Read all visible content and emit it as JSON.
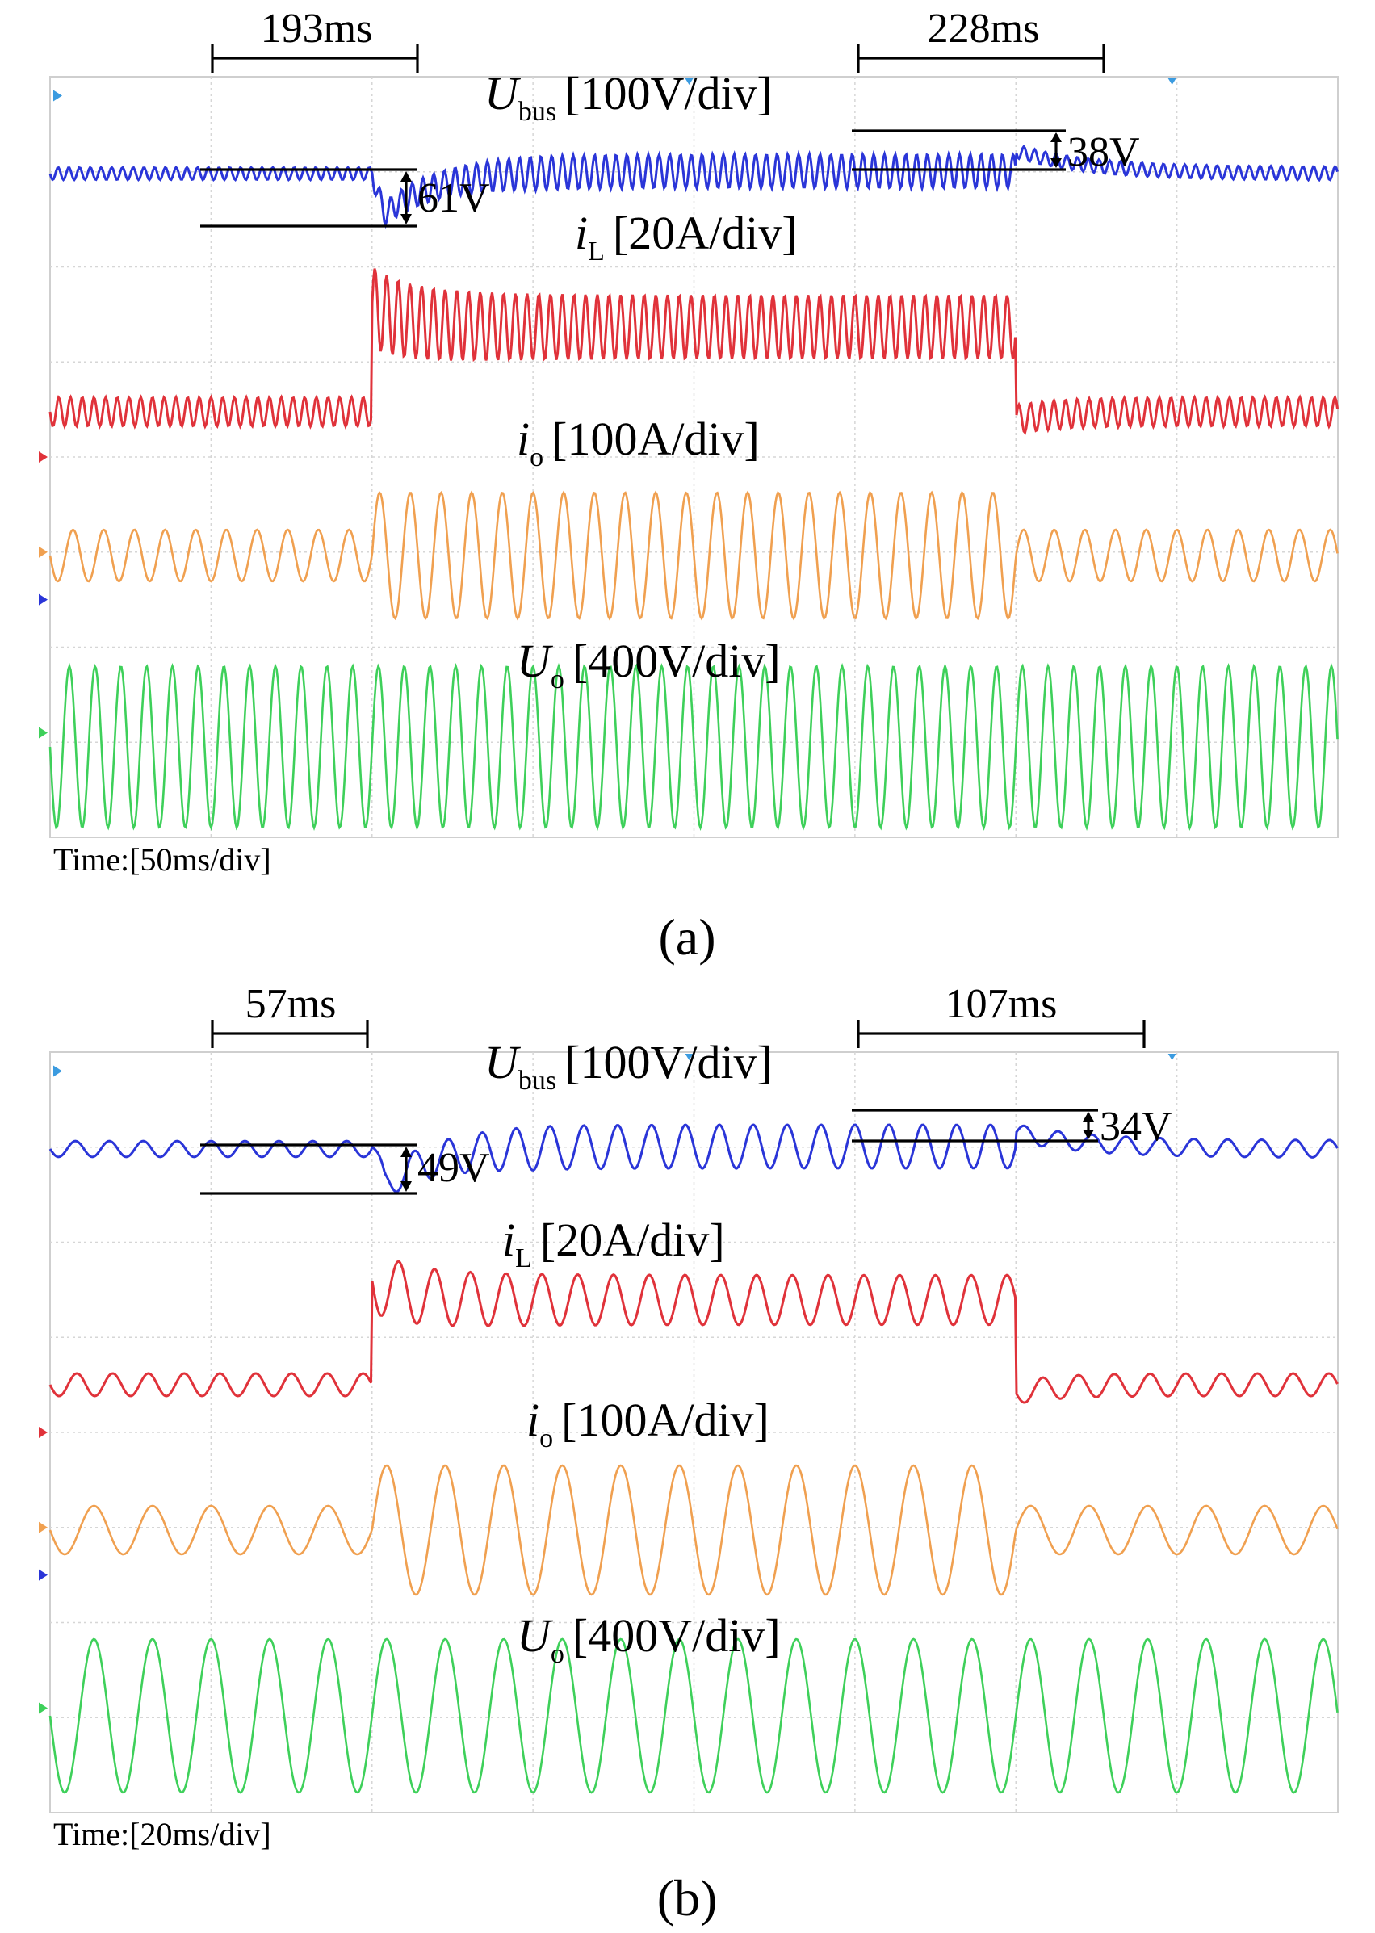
{
  "chart_data": [
    {
      "type": "line",
      "panel_label": "(a)",
      "time_label": "Time:[50ms/div]",
      "x_divisions": 8,
      "y_divisions": 8,
      "grid": true,
      "colors": {
        "bus": "#2a35d8",
        "iL": "#e0323a",
        "io": "#f0a050",
        "uo": "#3ed05a"
      },
      "series": [
        {
          "name": "U_bus",
          "label_main": "U",
          "label_sub": "bus",
          "scale": "[100V/div]",
          "color_key": "bus"
        },
        {
          "name": "i_L",
          "label_main": "i",
          "label_sub": "L",
          "scale": "[20A/div]",
          "color_key": "iL"
        },
        {
          "name": "i_o",
          "label_main": "i",
          "label_sub": "o",
          "scale": "[100A/div]",
          "color_key": "io"
        },
        {
          "name": "U_o",
          "label_main": "U",
          "label_sub": "o",
          "scale": "[400V/div]",
          "color_key": "uo"
        }
      ],
      "step_up_time_div": 2.0,
      "step_down_time_div": 6.0,
      "annotations": [
        {
          "text": "193ms",
          "kind": "duration",
          "start_div": 2.0,
          "end_div": 4.6
        },
        {
          "text": "228ms",
          "kind": "duration",
          "start_div": 6.0,
          "end_div": 9.6
        },
        {
          "text": "61V",
          "kind": "dip",
          "value": 61
        },
        {
          "text": "38V",
          "kind": "rise",
          "value": 38
        }
      ]
    },
    {
      "type": "line",
      "panel_label": "(b)",
      "time_label": "Time:[20ms/div]",
      "x_divisions": 8,
      "y_divisions": 8,
      "grid": true,
      "colors": {
        "bus": "#2a35d8",
        "iL": "#e0323a",
        "io": "#f0a050",
        "uo": "#3ed05a"
      },
      "series": [
        {
          "name": "U_bus",
          "label_main": "U",
          "label_sub": "bus",
          "scale": "[100V/div]",
          "color_key": "bus"
        },
        {
          "name": "i_L",
          "label_main": "i",
          "label_sub": "L",
          "scale": "[20A/div]",
          "color_key": "iL"
        },
        {
          "name": "i_o",
          "label_main": "i",
          "label_sub": "o",
          "scale": "[100A/div]",
          "color_key": "io"
        },
        {
          "name": "U_o",
          "label_main": "U",
          "label_sub": "o",
          "scale": "[400V/div]",
          "color_key": "uo"
        }
      ],
      "step_up_time_div": 2.0,
      "step_down_time_div": 6.0,
      "annotations": [
        {
          "text": "57ms",
          "kind": "duration",
          "start_div": 2.0,
          "end_div": 4.0
        },
        {
          "text": "107ms",
          "kind": "duration",
          "start_div": 6.0,
          "end_div": 9.6
        },
        {
          "text": "49V",
          "kind": "dip",
          "value": 49
        },
        {
          "text": "34V",
          "kind": "rise",
          "value": 34
        }
      ]
    }
  ]
}
